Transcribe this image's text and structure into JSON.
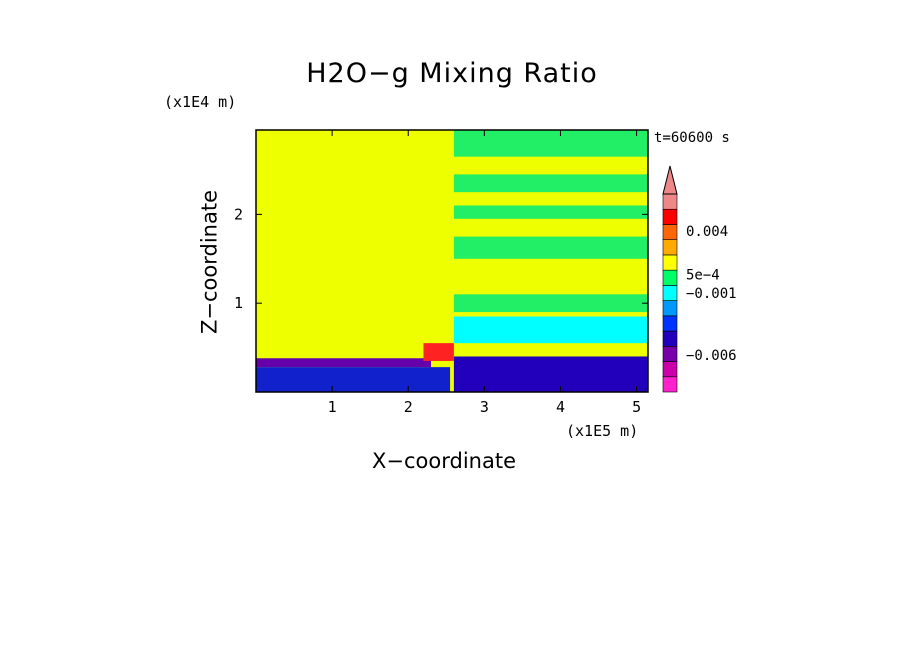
{
  "chart_data": {
    "type": "heatmap",
    "title": "H2O−g Mixing Ratio",
    "xlabel": "X−coordinate",
    "ylabel": "Z−coordinate",
    "x_unit_label": "(x1E5 m)",
    "z_unit_label": "(x1E4 m)",
    "time_label": "t=60600 s",
    "xlim": [
      0,
      5.15
    ],
    "zlim": [
      0,
      2.95
    ],
    "x_ticks": [
      "1",
      "2",
      "3",
      "4",
      "5"
    ],
    "x_tick_values": [
      1,
      2,
      3,
      4,
      5
    ],
    "z_ticks": [
      "1",
      "2"
    ],
    "z_tick_values": [
      1,
      2
    ],
    "colorbar": {
      "colors": [
        "#ff22cc",
        "#cc00aa",
        "#7700aa",
        "#2200bb",
        "#0033ff",
        "#0099ff",
        "#00ffff",
        "#00ff66",
        "#ffff00",
        "#ffaa00",
        "#ff6600",
        "#ff0000",
        "#ee8888"
      ],
      "extend_top_color": "#ee8888",
      "labels": [
        "0.004",
        "5e−4",
        "−0.001",
        "−0.006"
      ],
      "label_positions": [
        0.004,
        0.0005,
        -0.001,
        -0.006
      ],
      "range": [
        -0.009,
        0.007
      ]
    },
    "regions": [
      {
        "name": "background",
        "x": [
          0,
          5.15
        ],
        "z": [
          0,
          2.95
        ],
        "color": "#eeff00"
      },
      {
        "name": "right-upper-green-top",
        "x": [
          2.6,
          5.15
        ],
        "z": [
          2.65,
          2.95
        ],
        "color": "#22ee66"
      },
      {
        "name": "right-green-band-1",
        "x": [
          2.6,
          5.15
        ],
        "z": [
          2.25,
          2.45
        ],
        "color": "#22ee66"
      },
      {
        "name": "right-green-band-2",
        "x": [
          2.6,
          5.15
        ],
        "z": [
          1.95,
          2.1
        ],
        "color": "#22ee66"
      },
      {
        "name": "right-green-band-3",
        "x": [
          2.6,
          5.15
        ],
        "z": [
          1.5,
          1.75
        ],
        "color": "#22ee66"
      },
      {
        "name": "right-green-band-4",
        "x": [
          2.6,
          5.15
        ],
        "z": [
          0.9,
          1.1
        ],
        "color": "#22ee66"
      },
      {
        "name": "right-cyan-zone",
        "x": [
          2.6,
          5.15
        ],
        "z": [
          0.55,
          0.85
        ],
        "color": "#00ffff"
      },
      {
        "name": "right-lower-dark",
        "x": [
          2.6,
          5.15
        ],
        "z": [
          0,
          0.4
        ],
        "color": "#2200bb"
      },
      {
        "name": "left-purple-layer",
        "x": [
          0,
          2.3
        ],
        "z": [
          0.28,
          0.38
        ],
        "color": "#6600aa"
      },
      {
        "name": "left-surface-blue",
        "x": [
          0,
          2.55
        ],
        "z": [
          0,
          0.28
        ],
        "color": "#1122cc"
      },
      {
        "name": "left-red-blob",
        "x": [
          2.2,
          2.6
        ],
        "z": [
          0.35,
          0.55
        ],
        "color": "#ff2222"
      }
    ],
    "grid": false
  }
}
